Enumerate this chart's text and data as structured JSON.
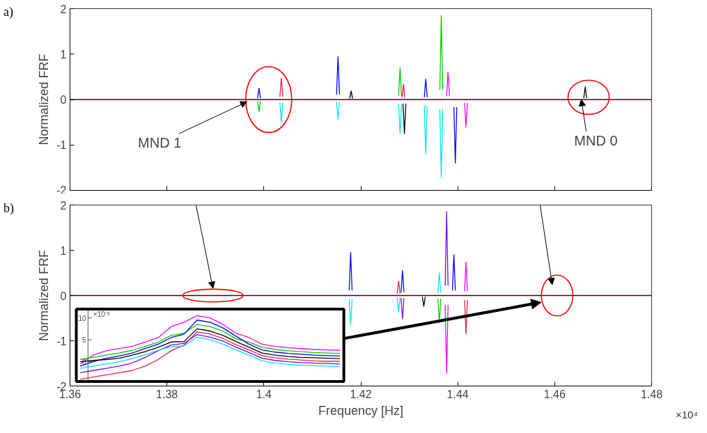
{
  "chart_data": [
    {
      "type": "line",
      "annotations": [
        "a)",
        {
          "text": "MND 1",
          "x": 1.3965,
          "y": 0
        },
        {
          "text": "MND 0",
          "x": 1.4655,
          "y": 0.05
        }
      ],
      "ylabel": "Normalized FRF",
      "xlim": [
        1.36,
        1.48
      ],
      "ylim": [
        -2,
        2
      ],
      "xticks": [
        1.36,
        1.38,
        1.4,
        1.42,
        1.44,
        1.46,
        1.48
      ],
      "yticks": [
        -2,
        -1,
        0,
        1,
        2
      ],
      "tick_labels": "y",
      "grid": false,
      "ref_lines": [
        {
          "axis": "y",
          "value": 0,
          "color": "#4a0010"
        }
      ],
      "series": [
        {
          "color": "#0000ff",
          "x": [
            1.3987,
            1.399,
            1.3993,
            null,
            1.415,
            1.4153,
            1.4156,
            null,
            1.4331,
            1.4334,
            1.4337,
            null,
            1.4392,
            1.4395,
            1.4398
          ],
          "values": [
            0.03,
            0.25,
            0.03,
            null,
            0.11,
            0.94,
            0.11,
            null,
            0.05,
            0.45,
            0.05,
            null,
            -0.17,
            -1.4,
            -0.17
          ]
        },
        {
          "color": "#00cc00",
          "x": [
            1.3987,
            1.399,
            1.3993,
            null,
            1.4278,
            1.4281,
            1.4284,
            null,
            1.4363,
            1.4366,
            1.4369
          ],
          "values": [
            -0.03,
            -0.26,
            -0.03,
            null,
            0.08,
            0.7,
            0.08,
            null,
            0.22,
            1.85,
            0.22
          ]
        },
        {
          "color": "#00e5ee",
          "x": [
            1.4033,
            1.4036,
            1.4039,
            null,
            1.415,
            1.4153,
            1.4156,
            null,
            1.4278,
            1.4281,
            1.4284,
            null,
            1.4331,
            1.4334,
            1.4337,
            null,
            1.4363,
            1.4366,
            1.4369
          ],
          "values": [
            -0.06,
            -0.5,
            -0.06,
            null,
            -0.05,
            -0.44,
            -0.05,
            null,
            -0.09,
            -0.75,
            -0.09,
            null,
            -0.14,
            -1.2,
            -0.14,
            null,
            -0.21,
            -1.72,
            -0.21
          ]
        },
        {
          "color": "#ff00ff",
          "x": [
            1.4377,
            1.438,
            1.4383,
            null,
            1.4414,
            1.4417,
            1.442
          ],
          "values": [
            0.07,
            0.6,
            0.07,
            null,
            -0.07,
            -0.6,
            -0.07
          ]
        },
        {
          "color": "#e8204a",
          "x": [
            1.4033,
            1.4036,
            1.4039,
            null,
            1.4285,
            1.4288,
            1.4291
          ],
          "values": [
            0.06,
            0.47,
            0.06,
            null,
            0.04,
            0.34,
            0.04
          ]
        },
        {
          "color": "#000000",
          "x": [
            1.4177,
            1.418,
            1.4183,
            null,
            1.4287,
            1.429,
            1.4293,
            null,
            1.466,
            1.4663,
            1.4666
          ],
          "values": [
            0.02,
            0.19,
            0.02,
            null,
            -0.09,
            -0.75,
            -0.09,
            null,
            0.03,
            0.28,
            0.03
          ]
        }
      ]
    },
    {
      "type": "line",
      "annotations": [
        "b)",
        "×10⁴"
      ],
      "xlabel": "Frequency [Hz]",
      "ylabel": "Normalized FRF",
      "xlim": [
        1.36,
        1.48
      ],
      "ylim": [
        -2,
        2
      ],
      "xticks": [
        1.36,
        1.38,
        1.4,
        1.42,
        1.44,
        1.46,
        1.48
      ],
      "yticks": [
        -2,
        -1,
        0,
        1,
        2
      ],
      "grid": false,
      "ref_lines": [
        {
          "axis": "y",
          "value": 0,
          "color": "#4a0010"
        }
      ],
      "series": [
        {
          "color": "#0000ff",
          "x": [
            1.4176,
            1.4179,
            1.4182,
            null,
            1.4283,
            1.4286,
            1.4289,
            null,
            1.4389,
            1.4392,
            1.4395
          ],
          "values": [
            0.11,
            0.95,
            0.11,
            null,
            0.07,
            0.55,
            0.07,
            null,
            0.11,
            0.9,
            0.11
          ]
        },
        {
          "color": "#00e5ee",
          "x": [
            1.4176,
            1.4179,
            1.4182,
            null,
            1.4275,
            1.4278,
            1.4281,
            null,
            1.4359,
            1.4362,
            1.4365
          ],
          "values": [
            -0.08,
            -0.65,
            -0.08,
            null,
            -0.04,
            -0.37,
            -0.04,
            null,
            0.06,
            0.5,
            0.06
          ]
        },
        {
          "color": "#ff00ff",
          "x": [
            1.4374,
            1.4377,
            1.438,
            null,
            1.4414,
            1.4417,
            1.442
          ],
          "values": [
            -0.21,
            -1.72,
            -0.21,
            null,
            0.09,
            0.74,
            0.09
          ]
        },
        {
          "color": "#00cc00",
          "x": [
            1.4359,
            1.4362,
            1.4365
          ],
          "values": [
            -0.07,
            -0.6,
            -0.07
          ]
        },
        {
          "color": "#8000ff",
          "x": [
            1.4283,
            1.4286,
            1.4289,
            null,
            1.4374,
            1.4377,
            1.438
          ],
          "values": [
            -0.06,
            -0.52,
            -0.06,
            null,
            0.22,
            1.85,
            0.22
          ]
        },
        {
          "color": "#e8204a",
          "x": [
            1.4275,
            1.4278,
            1.4281,
            null,
            1.4414,
            1.4417,
            1.442
          ],
          "values": [
            0.04,
            0.32,
            0.04,
            null,
            -0.1,
            -0.85,
            -0.1
          ]
        },
        {
          "color": "#000000",
          "x": [
            1.4327,
            1.433,
            1.4333
          ],
          "values": [
            -0.03,
            -0.24,
            -0.03
          ]
        }
      ]
    },
    {
      "type": "line",
      "annotations": [
        "×10⁻³"
      ],
      "ylim": [
        -4.5,
        12
      ],
      "yticks": [
        0,
        5,
        10
      ],
      "tick_labels": "y",
      "categories": [
        null,
        null,
        null,
        null,
        null,
        null,
        null,
        null,
        null,
        null,
        null,
        null,
        null,
        null,
        null,
        null,
        null,
        null,
        null,
        null,
        null
      ],
      "series": [
        {
          "color": "#ff00ff",
          "values": [
            -0.5,
            1.5,
            2.5,
            3,
            3.5,
            4.5,
            5.5,
            8,
            9,
            10.5,
            10,
            8.5,
            6.5,
            5.5,
            4,
            3.5,
            3.2,
            3,
            2.8,
            2.7,
            2.6
          ]
        },
        {
          "color": "#00cc00",
          "values": [
            0.5,
            1,
            1.5,
            2,
            2.6,
            3.5,
            4.5,
            6,
            6.5,
            8.5,
            8,
            7,
            5.2,
            4.5,
            3.3,
            2.8,
            2.5,
            2.3,
            2.1,
            2,
            1.9
          ]
        },
        {
          "color": "#0000ff",
          "values": [
            -1,
            0,
            0.8,
            1.3,
            2,
            3,
            4,
            5.5,
            6.3,
            9.5,
            9,
            7.7,
            5.8,
            4,
            2.7,
            2.2,
            1.9,
            1.7,
            1.5,
            1.4,
            1.3
          ]
        },
        {
          "color": "#000000",
          "values": [
            0,
            0.3,
            0.5,
            0.8,
            1.5,
            2.3,
            3.3,
            4.5,
            4.6,
            7.5,
            7,
            6,
            4.6,
            3.3,
            2,
            1.5,
            1.2,
            1,
            0.9,
            0.8,
            0.7
          ]
        },
        {
          "color": "#e8204a",
          "values": [
            -4,
            -3.5,
            -3,
            -2.5,
            -2,
            -1,
            0.5,
            2.5,
            3.8,
            6.8,
            6.3,
            5.3,
            3.9,
            2.7,
            1.4,
            0.9,
            0.6,
            0.4,
            0.2,
            0.1,
            0.1
          ]
        },
        {
          "color": "#8000ff",
          "values": [
            -2.5,
            -2,
            -1.5,
            -1,
            -0.3,
            1,
            2.5,
            3.8,
            4.2,
            6.2,
            5.6,
            4.7,
            3.3,
            2.1,
            0.8,
            0.3,
            0,
            -0.2,
            -0.3,
            -0.4,
            -0.5
          ]
        },
        {
          "color": "#00e5ee",
          "values": [
            -1.5,
            -1,
            -0.5,
            0,
            0.7,
            1.6,
            2.6,
            3.4,
            3.6,
            5.6,
            5,
            4,
            2.7,
            1.5,
            0.2,
            -0.3,
            -0.6,
            -0.8,
            -0.9,
            -1,
            -1.1
          ]
        }
      ]
    }
  ]
}
